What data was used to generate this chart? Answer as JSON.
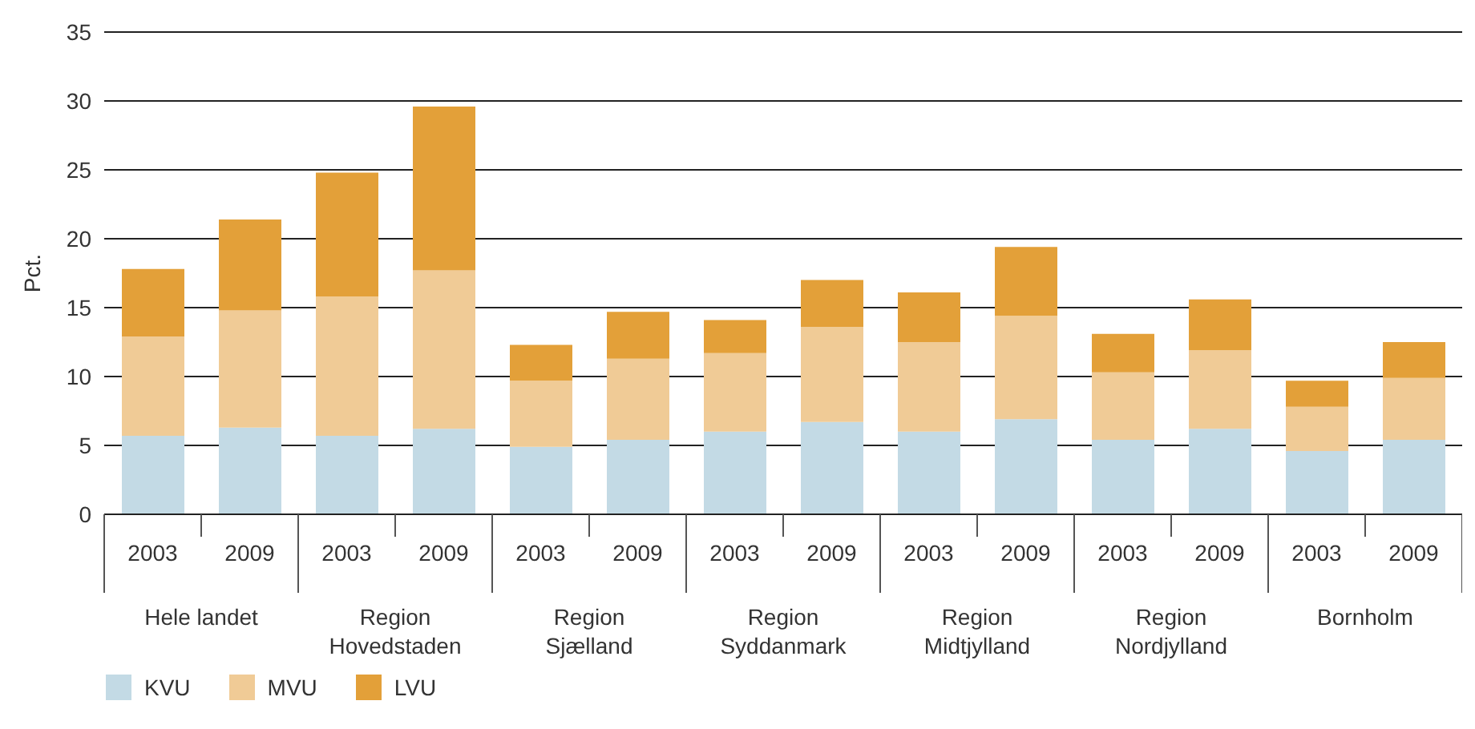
{
  "chart_data": {
    "type": "bar",
    "stacked": true,
    "ylabel": "Pct.",
    "categories": [
      "2003",
      "2009",
      "2003",
      "2009",
      "2003",
      "2009",
      "2003",
      "2009",
      "2003",
      "2009",
      "2003",
      "2009",
      "2003",
      "2009"
    ],
    "annotations": [
      "Hele landet",
      "Region Hovedstaden",
      "Region Sjælland",
      "Region Syddanmark",
      "Region Midtjylland",
      "Region Nordjylland",
      "Bornholm"
    ],
    "series": [
      {
        "name": "KVU",
        "color": "#c3dae5",
        "values": [
          5.7,
          6.3,
          5.7,
          6.2,
          4.9,
          5.4,
          6.0,
          6.7,
          6.0,
          6.9,
          5.4,
          6.2,
          4.6,
          5.4
        ]
      },
      {
        "name": "MVU",
        "color": "#f0cb96",
        "values": [
          7.2,
          8.5,
          10.1,
          11.5,
          4.8,
          5.9,
          5.7,
          6.9,
          6.5,
          7.5,
          4.9,
          5.7,
          3.2,
          4.5
        ]
      },
      {
        "name": "LVU",
        "color": "#e3a039",
        "values": [
          4.9,
          6.6,
          9.0,
          11.9,
          2.6,
          3.4,
          2.4,
          3.4,
          3.6,
          5.0,
          2.8,
          3.7,
          1.9,
          2.6
        ]
      }
    ],
    "ylim": [
      0,
      35
    ],
    "yticks": [
      0,
      5,
      10,
      15,
      20,
      25,
      30,
      35
    ],
    "grid": "y",
    "legend": "bottom left"
  }
}
